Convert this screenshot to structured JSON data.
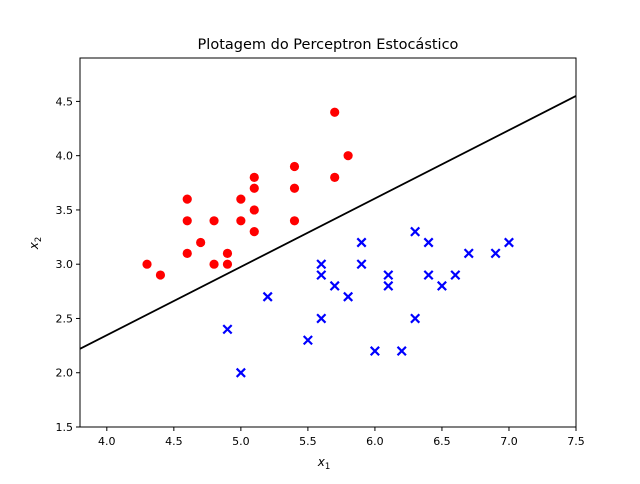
{
  "chart_data": {
    "type": "scatter",
    "title": "Plotagem do Perceptron Estocástico",
    "xlabel": "x",
    "xlabel_sub": "1",
    "ylabel": "x",
    "ylabel_sub": "2",
    "xlim": [
      3.8,
      7.5
    ],
    "ylim": [
      1.5,
      4.9
    ],
    "xticks": [
      4.0,
      4.5,
      5.0,
      5.5,
      6.0,
      6.5,
      7.0,
      7.5
    ],
    "xtick_labels": [
      "4.0",
      "4.5",
      "5.0",
      "5.5",
      "6.0",
      "6.5",
      "7.0",
      "7.5"
    ],
    "yticks": [
      1.5,
      2.0,
      2.5,
      3.0,
      3.5,
      4.0,
      4.5
    ],
    "ytick_labels": [
      "1.5",
      "2.0",
      "2.5",
      "3.0",
      "3.5",
      "4.0",
      "4.5"
    ],
    "grid": false,
    "series": [
      {
        "marker": "circle",
        "color": "#ff0000",
        "points": [
          [
            4.3,
            3.0
          ],
          [
            4.4,
            2.9
          ],
          [
            4.6,
            3.1
          ],
          [
            4.6,
            3.4
          ],
          [
            4.6,
            3.6
          ],
          [
            4.7,
            3.2
          ],
          [
            4.8,
            3.0
          ],
          [
            4.8,
            3.4
          ],
          [
            4.9,
            3.0
          ],
          [
            4.9,
            3.1
          ],
          [
            5.0,
            3.4
          ],
          [
            5.0,
            3.6
          ],
          [
            5.1,
            3.3
          ],
          [
            5.1,
            3.5
          ],
          [
            5.1,
            3.7
          ],
          [
            5.1,
            3.8
          ],
          [
            5.4,
            3.4
          ],
          [
            5.4,
            3.7
          ],
          [
            5.4,
            3.9
          ],
          [
            5.7,
            3.8
          ],
          [
            5.7,
            4.4
          ],
          [
            5.8,
            4.0
          ]
        ]
      },
      {
        "marker": "x",
        "color": "#0000ff",
        "points": [
          [
            4.9,
            2.4
          ],
          [
            5.0,
            2.0
          ],
          [
            5.2,
            2.7
          ],
          [
            5.5,
            2.3
          ],
          [
            5.6,
            2.5
          ],
          [
            5.6,
            2.9
          ],
          [
            5.6,
            3.0
          ],
          [
            5.7,
            2.8
          ],
          [
            5.8,
            2.7
          ],
          [
            5.9,
            3.0
          ],
          [
            5.9,
            3.2
          ],
          [
            6.0,
            2.2
          ],
          [
            6.1,
            2.8
          ],
          [
            6.1,
            2.9
          ],
          [
            6.2,
            2.2
          ],
          [
            6.3,
            2.5
          ],
          [
            6.3,
            3.3
          ],
          [
            6.4,
            2.9
          ],
          [
            6.4,
            3.2
          ],
          [
            6.5,
            2.8
          ],
          [
            6.6,
            2.9
          ],
          [
            6.7,
            3.1
          ],
          [
            6.9,
            3.1
          ],
          [
            7.0,
            3.2
          ]
        ]
      }
    ],
    "decision_line": {
      "color": "#000000",
      "points": [
        [
          3.8,
          2.22
        ],
        [
          7.5,
          4.55
        ]
      ]
    }
  }
}
